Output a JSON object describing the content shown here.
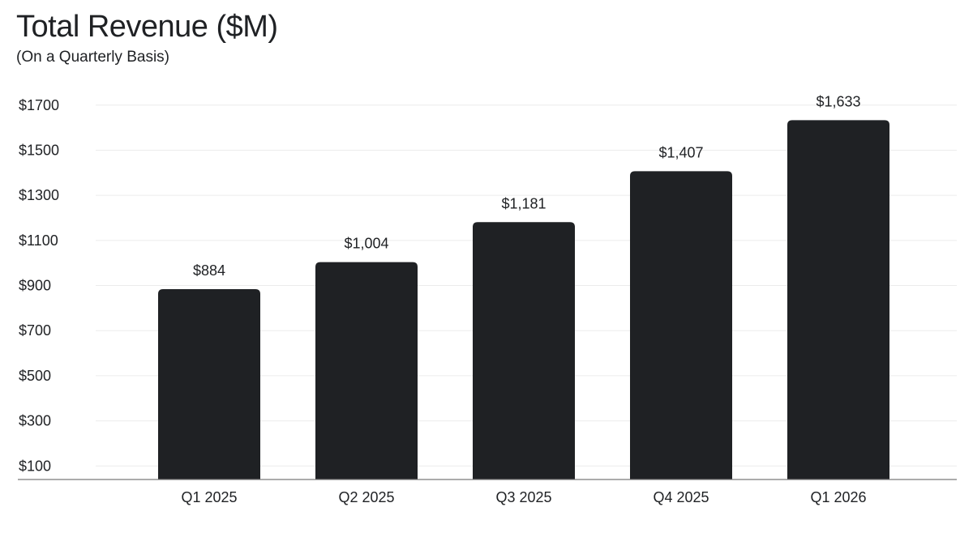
{
  "chart_data": {
    "type": "bar",
    "title": "Total Revenue ($M)",
    "subtitle": "(On a Quarterly Basis)",
    "xlabel": "",
    "ylabel": "",
    "categories": [
      "Q1 2025",
      "Q2 2025",
      "Q3 2025",
      "Q4 2025",
      "Q1 2026"
    ],
    "values": [
      884,
      1004,
      1181,
      1407,
      1633
    ],
    "data_labels": [
      "$884",
      "$1,004",
      "$1,181",
      "$1,407",
      "$1,633"
    ],
    "yticks": [
      100,
      300,
      500,
      700,
      900,
      1100,
      1300,
      1500,
      1700
    ],
    "ytick_labels": [
      "$100",
      "$300",
      "$500",
      "$700",
      "$900",
      "$1100",
      "$1300",
      "$1500",
      "$1700"
    ],
    "ylim": [
      40,
      1700
    ],
    "grid": true,
    "legend": "none",
    "colors": {
      "bar": "#1f2124",
      "grid": "#ececec",
      "axis": "#7a7a7a",
      "text": "#1f2124"
    }
  }
}
